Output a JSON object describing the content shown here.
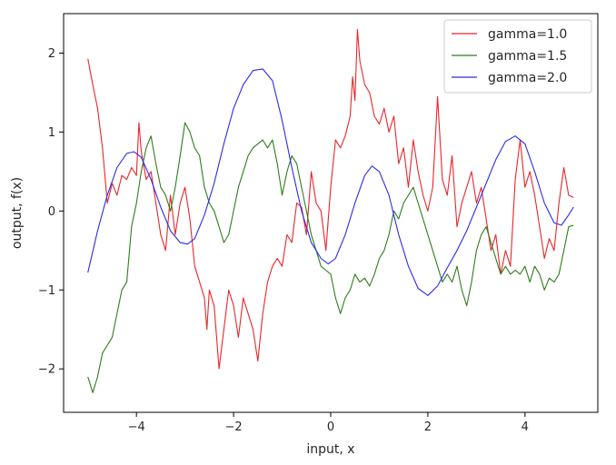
{
  "chart_data": {
    "type": "line",
    "title": "",
    "xlabel": "input, x",
    "ylabel": "output, f(x)",
    "xlim": [
      -5.5,
      5.5
    ],
    "ylim": [
      -2.55,
      2.5
    ],
    "xticks": [
      -4,
      -2,
      0,
      2,
      4
    ],
    "yticks": [
      -2,
      -1,
      0,
      1,
      2
    ],
    "xtick_labels": [
      "−4",
      "−2",
      "0",
      "2",
      "4"
    ],
    "ytick_labels": [
      "−2",
      "−1",
      "0",
      "1",
      "2"
    ],
    "grid": false,
    "legend_position": "top-right",
    "series": [
      {
        "name": "gamma=1.0",
        "color": "#e8262a",
        "points": [
          [
            -5.0,
            1.93
          ],
          [
            -4.9,
            1.6
          ],
          [
            -4.8,
            1.3
          ],
          [
            -4.7,
            0.8
          ],
          [
            -4.6,
            0.1
          ],
          [
            -4.5,
            0.35
          ],
          [
            -4.4,
            0.2
          ],
          [
            -4.3,
            0.45
          ],
          [
            -4.2,
            0.4
          ],
          [
            -4.1,
            0.55
          ],
          [
            -4.0,
            0.45
          ],
          [
            -3.95,
            1.12
          ],
          [
            -3.9,
            0.75
          ],
          [
            -3.8,
            0.4
          ],
          [
            -3.7,
            0.5
          ],
          [
            -3.6,
            0.1
          ],
          [
            -3.5,
            -0.3
          ],
          [
            -3.4,
            -0.5
          ],
          [
            -3.3,
            0.2
          ],
          [
            -3.2,
            -0.3
          ],
          [
            -3.1,
            0.1
          ],
          [
            -3.0,
            0.3
          ],
          [
            -2.9,
            -0.1
          ],
          [
            -2.8,
            -0.7
          ],
          [
            -2.7,
            -0.9
          ],
          [
            -2.6,
            -1.1
          ],
          [
            -2.55,
            -1.5
          ],
          [
            -2.5,
            -1.0
          ],
          [
            -2.4,
            -1.2
          ],
          [
            -2.3,
            -2.0
          ],
          [
            -2.2,
            -1.5
          ],
          [
            -2.1,
            -1.0
          ],
          [
            -2.0,
            -1.2
          ],
          [
            -1.9,
            -1.6
          ],
          [
            -1.8,
            -1.1
          ],
          [
            -1.7,
            -1.3
          ],
          [
            -1.6,
            -1.5
          ],
          [
            -1.5,
            -1.9
          ],
          [
            -1.4,
            -1.3
          ],
          [
            -1.3,
            -0.9
          ],
          [
            -1.2,
            -0.7
          ],
          [
            -1.1,
            -0.6
          ],
          [
            -1.0,
            -0.7
          ],
          [
            -0.9,
            -0.3
          ],
          [
            -0.8,
            -0.4
          ],
          [
            -0.7,
            0.1
          ],
          [
            -0.6,
            0.05
          ],
          [
            -0.5,
            -0.3
          ],
          [
            -0.4,
            0.5
          ],
          [
            -0.3,
            0.1
          ],
          [
            -0.2,
            0.0
          ],
          [
            -0.1,
            -0.5
          ],
          [
            0.0,
            0.3
          ],
          [
            0.1,
            0.9
          ],
          [
            0.2,
            0.8
          ],
          [
            0.3,
            0.95
          ],
          [
            0.4,
            1.2
          ],
          [
            0.45,
            1.7
          ],
          [
            0.5,
            1.4
          ],
          [
            0.55,
            2.3
          ],
          [
            0.6,
            1.9
          ],
          [
            0.7,
            1.6
          ],
          [
            0.8,
            1.5
          ],
          [
            0.9,
            1.2
          ],
          [
            1.0,
            1.1
          ],
          [
            1.1,
            1.3
          ],
          [
            1.2,
            1.0
          ],
          [
            1.3,
            1.2
          ],
          [
            1.4,
            0.6
          ],
          [
            1.5,
            0.8
          ],
          [
            1.6,
            0.3
          ],
          [
            1.7,
            0.9
          ],
          [
            1.8,
            0.5
          ],
          [
            1.9,
            0.2
          ],
          [
            2.0,
            0.0
          ],
          [
            2.1,
            0.3
          ],
          [
            2.2,
            1.45
          ],
          [
            2.3,
            0.4
          ],
          [
            2.4,
            0.2
          ],
          [
            2.5,
            0.7
          ],
          [
            2.6,
            -0.2
          ],
          [
            2.7,
            0.1
          ],
          [
            2.8,
            0.3
          ],
          [
            2.9,
            0.5
          ],
          [
            3.0,
            0.1
          ],
          [
            3.1,
            0.3
          ],
          [
            3.2,
            -0.1
          ],
          [
            3.3,
            -0.5
          ],
          [
            3.4,
            -0.3
          ],
          [
            3.5,
            -0.8
          ],
          [
            3.6,
            -0.5
          ],
          [
            3.7,
            -0.7
          ],
          [
            3.8,
            0.4
          ],
          [
            3.9,
            0.9
          ],
          [
            4.0,
            0.3
          ],
          [
            4.1,
            0.5
          ],
          [
            4.2,
            0.2
          ],
          [
            4.3,
            -0.2
          ],
          [
            4.4,
            -0.6
          ],
          [
            4.5,
            -0.35
          ],
          [
            4.6,
            -0.5
          ],
          [
            4.7,
            0.1
          ],
          [
            4.8,
            0.55
          ],
          [
            4.9,
            0.2
          ],
          [
            5.0,
            0.17
          ]
        ]
      },
      {
        "name": "gamma=1.5",
        "color": "#2e7d1a",
        "points": [
          [
            -5.0,
            -2.1
          ],
          [
            -4.9,
            -2.3
          ],
          [
            -4.8,
            -2.1
          ],
          [
            -4.7,
            -1.8
          ],
          [
            -4.6,
            -1.7
          ],
          [
            -4.5,
            -1.6
          ],
          [
            -4.4,
            -1.3
          ],
          [
            -4.3,
            -1.0
          ],
          [
            -4.2,
            -0.9
          ],
          [
            -4.1,
            -0.2
          ],
          [
            -4.0,
            0.1
          ],
          [
            -3.9,
            0.5
          ],
          [
            -3.8,
            0.8
          ],
          [
            -3.7,
            0.95
          ],
          [
            -3.6,
            0.6
          ],
          [
            -3.5,
            0.3
          ],
          [
            -3.4,
            0.2
          ],
          [
            -3.3,
            0.0
          ],
          [
            -3.2,
            0.3
          ],
          [
            -3.1,
            0.7
          ],
          [
            -3.0,
            1.12
          ],
          [
            -2.9,
            1.0
          ],
          [
            -2.8,
            0.8
          ],
          [
            -2.7,
            0.7
          ],
          [
            -2.6,
            0.3
          ],
          [
            -2.5,
            0.1
          ],
          [
            -2.4,
            0.0
          ],
          [
            -2.3,
            -0.2
          ],
          [
            -2.2,
            -0.4
          ],
          [
            -2.1,
            -0.3
          ],
          [
            -2.0,
            0.0
          ],
          [
            -1.9,
            0.3
          ],
          [
            -1.8,
            0.5
          ],
          [
            -1.7,
            0.7
          ],
          [
            -1.6,
            0.8
          ],
          [
            -1.5,
            0.85
          ],
          [
            -1.4,
            0.9
          ],
          [
            -1.3,
            0.8
          ],
          [
            -1.2,
            0.9
          ],
          [
            -1.1,
            0.6
          ],
          [
            -1.0,
            0.2
          ],
          [
            -0.9,
            0.5
          ],
          [
            -0.8,
            0.7
          ],
          [
            -0.7,
            0.6
          ],
          [
            -0.6,
            0.3
          ],
          [
            -0.5,
            0.0
          ],
          [
            -0.4,
            -0.3
          ],
          [
            -0.3,
            -0.5
          ],
          [
            -0.2,
            -0.7
          ],
          [
            -0.1,
            -0.75
          ],
          [
            0.0,
            -0.8
          ],
          [
            0.1,
            -1.1
          ],
          [
            0.2,
            -1.3
          ],
          [
            0.3,
            -1.1
          ],
          [
            0.4,
            -1.0
          ],
          [
            0.5,
            -0.8
          ],
          [
            0.6,
            -0.9
          ],
          [
            0.7,
            -0.85
          ],
          [
            0.8,
            -0.95
          ],
          [
            0.9,
            -0.8
          ],
          [
            1.0,
            -0.6
          ],
          [
            1.1,
            -0.5
          ],
          [
            1.2,
            -0.3
          ],
          [
            1.3,
            0.0
          ],
          [
            1.4,
            -0.1
          ],
          [
            1.5,
            0.1
          ],
          [
            1.6,
            0.2
          ],
          [
            1.7,
            0.3
          ],
          [
            1.8,
            0.1
          ],
          [
            1.9,
            -0.1
          ],
          [
            2.0,
            -0.3
          ],
          [
            2.1,
            -0.5
          ],
          [
            2.2,
            -0.7
          ],
          [
            2.3,
            -0.9
          ],
          [
            2.4,
            -0.8
          ],
          [
            2.5,
            -0.9
          ],
          [
            2.6,
            -0.7
          ],
          [
            2.7,
            -1.0
          ],
          [
            2.8,
            -1.2
          ],
          [
            2.9,
            -0.9
          ],
          [
            3.0,
            -0.5
          ],
          [
            3.1,
            -0.3
          ],
          [
            3.2,
            -0.2
          ],
          [
            3.3,
            -0.4
          ],
          [
            3.4,
            -0.6
          ],
          [
            3.5,
            -0.8
          ],
          [
            3.6,
            -0.7
          ],
          [
            3.7,
            -0.8
          ],
          [
            3.8,
            -0.75
          ],
          [
            3.9,
            -0.8
          ],
          [
            4.0,
            -0.7
          ],
          [
            4.1,
            -0.9
          ],
          [
            4.2,
            -0.7
          ],
          [
            4.3,
            -0.8
          ],
          [
            4.4,
            -1.0
          ],
          [
            4.5,
            -0.85
          ],
          [
            4.6,
            -0.9
          ],
          [
            4.7,
            -0.8
          ],
          [
            4.8,
            -0.5
          ],
          [
            4.9,
            -0.2
          ],
          [
            5.0,
            -0.18
          ]
        ]
      },
      {
        "name": "gamma=2.0",
        "color": "#2b2be8",
        "points": [
          [
            -5.0,
            -0.78
          ],
          [
            -4.8,
            -0.25
          ],
          [
            -4.6,
            0.2
          ],
          [
            -4.4,
            0.55
          ],
          [
            -4.2,
            0.73
          ],
          [
            -4.05,
            0.75
          ],
          [
            -3.9,
            0.68
          ],
          [
            -3.7,
            0.4
          ],
          [
            -3.5,
            0.05
          ],
          [
            -3.3,
            -0.25
          ],
          [
            -3.1,
            -0.4
          ],
          [
            -2.95,
            -0.42
          ],
          [
            -2.8,
            -0.35
          ],
          [
            -2.6,
            -0.05
          ],
          [
            -2.4,
            0.35
          ],
          [
            -2.2,
            0.85
          ],
          [
            -2.0,
            1.3
          ],
          [
            -1.8,
            1.6
          ],
          [
            -1.6,
            1.78
          ],
          [
            -1.4,
            1.8
          ],
          [
            -1.2,
            1.65
          ],
          [
            -1.0,
            1.15
          ],
          [
            -0.8,
            0.55
          ],
          [
            -0.6,
            0.0
          ],
          [
            -0.4,
            -0.4
          ],
          [
            -0.2,
            -0.6
          ],
          [
            -0.05,
            -0.67
          ],
          [
            0.1,
            -0.6
          ],
          [
            0.3,
            -0.3
          ],
          [
            0.5,
            0.1
          ],
          [
            0.7,
            0.45
          ],
          [
            0.85,
            0.57
          ],
          [
            1.0,
            0.5
          ],
          [
            1.2,
            0.2
          ],
          [
            1.4,
            -0.3
          ],
          [
            1.6,
            -0.7
          ],
          [
            1.8,
            -0.98
          ],
          [
            2.0,
            -1.07
          ],
          [
            2.2,
            -0.95
          ],
          [
            2.4,
            -0.72
          ],
          [
            2.6,
            -0.5
          ],
          [
            2.8,
            -0.25
          ],
          [
            3.0,
            0.05
          ],
          [
            3.2,
            0.35
          ],
          [
            3.4,
            0.65
          ],
          [
            3.6,
            0.88
          ],
          [
            3.8,
            0.95
          ],
          [
            4.0,
            0.85
          ],
          [
            4.2,
            0.5
          ],
          [
            4.4,
            0.1
          ],
          [
            4.6,
            -0.15
          ],
          [
            4.75,
            -0.18
          ],
          [
            4.9,
            -0.05
          ],
          [
            5.0,
            0.05
          ]
        ]
      }
    ]
  }
}
